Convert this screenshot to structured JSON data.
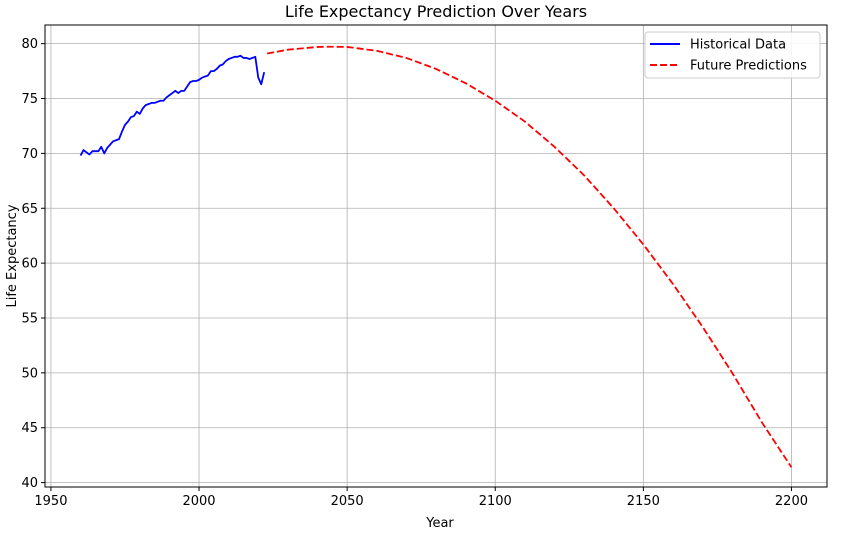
{
  "chart_data": {
    "type": "line",
    "title": "Life Expectancy Prediction Over Years",
    "xlabel": "Year",
    "ylabel": "Life Expectancy",
    "xlim": [
      1948,
      2212
    ],
    "ylim": [
      39.6,
      81.7
    ],
    "xticks": [
      1950,
      2000,
      2050,
      2100,
      2150,
      2200
    ],
    "yticks": [
      40,
      45,
      50,
      55,
      60,
      65,
      70,
      75,
      80
    ],
    "grid": true,
    "legend_position": "top-right",
    "series": [
      {
        "name": "Historical Data",
        "color": "#0000ff",
        "style": "solid",
        "x": [
          1960,
          1961,
          1962,
          1963,
          1964,
          1965,
          1966,
          1967,
          1968,
          1969,
          1970,
          1971,
          1972,
          1973,
          1974,
          1975,
          1976,
          1977,
          1978,
          1979,
          1980,
          1981,
          1982,
          1983,
          1984,
          1985,
          1986,
          1987,
          1988,
          1989,
          1990,
          1991,
          1992,
          1993,
          1994,
          1995,
          1996,
          1997,
          1998,
          1999,
          2000,
          2001,
          2002,
          2003,
          2004,
          2005,
          2006,
          2007,
          2008,
          2009,
          2010,
          2011,
          2012,
          2013,
          2014,
          2015,
          2016,
          2017,
          2018,
          2019,
          2020,
          2021,
          2022
        ],
        "y": [
          69.8,
          70.3,
          70.1,
          69.9,
          70.2,
          70.2,
          70.2,
          70.6,
          70.0,
          70.5,
          70.8,
          71.1,
          71.2,
          71.3,
          72.0,
          72.6,
          72.9,
          73.3,
          73.4,
          73.8,
          73.6,
          74.1,
          74.4,
          74.5,
          74.6,
          74.6,
          74.7,
          74.8,
          74.8,
          75.1,
          75.3,
          75.5,
          75.7,
          75.5,
          75.7,
          75.7,
          76.1,
          76.5,
          76.6,
          76.6,
          76.7,
          76.9,
          77.0,
          77.1,
          77.5,
          77.5,
          77.7,
          78.0,
          78.1,
          78.4,
          78.6,
          78.7,
          78.8,
          78.8,
          78.9,
          78.7,
          78.7,
          78.6,
          78.7,
          78.8,
          76.9,
          76.3,
          77.4
        ]
      },
      {
        "name": "Future Predictions",
        "color": "#ff0000",
        "style": "dashed",
        "x": [
          2023,
          2030,
          2040,
          2044,
          2050,
          2060,
          2070,
          2080,
          2090,
          2100,
          2110,
          2120,
          2130,
          2140,
          2150,
          2160,
          2170,
          2180,
          2190,
          2200
        ],
        "y": [
          79.1,
          79.45,
          79.7,
          79.72,
          79.7,
          79.35,
          78.7,
          77.7,
          76.4,
          74.8,
          72.9,
          70.6,
          68.0,
          65.0,
          61.7,
          58.1,
          54.2,
          50.0,
          45.5,
          41.4
        ]
      }
    ]
  }
}
